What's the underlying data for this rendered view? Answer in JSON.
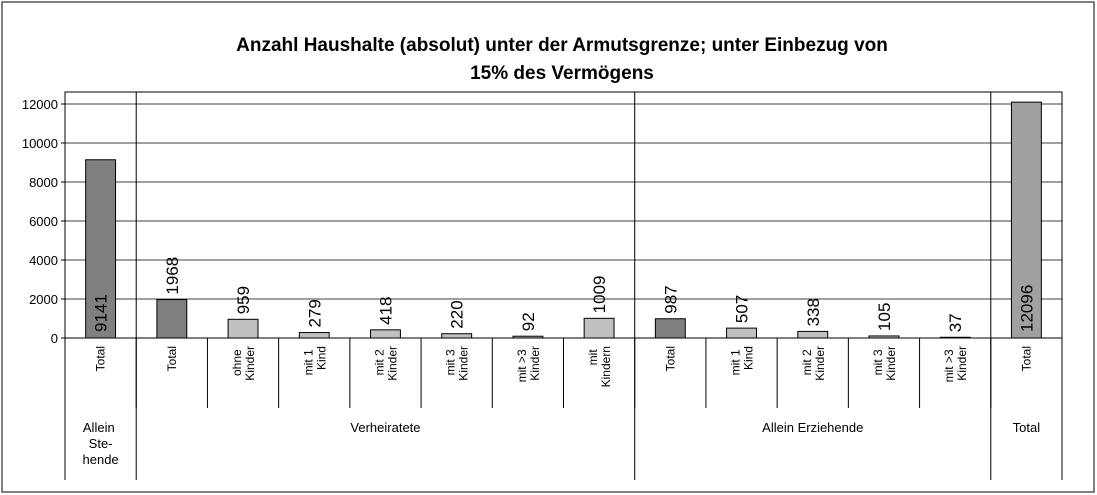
{
  "chart_data": {
    "type": "bar",
    "title": [
      "Anzahl Haushalte (absolut) unter der Armutsgrenze; unter Einbezug von",
      "15% des Vermögens"
    ],
    "groups": [
      {
        "name": "Allein Ste-hende",
        "categories": [
          "Total"
        ],
        "values": [
          9141
        ],
        "colors": [
          "#808080"
        ]
      },
      {
        "name": "Verheiratete",
        "categories": [
          "Total",
          "ohne Kinder",
          "mit 1 Kind",
          "mit 2 Kinder",
          "mit 3 Kinder",
          "mit >3 Kinder",
          "mit Kindern"
        ],
        "values": [
          1968,
          959,
          279,
          418,
          220,
          92,
          1009
        ],
        "colors": [
          "#808080",
          "#c0c0c0",
          "#c0c0c0",
          "#c0c0c0",
          "#c0c0c0",
          "#c0c0c0",
          "#c0c0c0"
        ]
      },
      {
        "name": "Allein Erziehende",
        "categories": [
          "Total",
          "mit 1 Kind",
          "mit 2 Kinder",
          "mit 3 Kinder",
          "mit >3 Kinder"
        ],
        "values": [
          987,
          507,
          338,
          105,
          37
        ],
        "colors": [
          "#808080",
          "#c0c0c0",
          "#c0c0c0",
          "#c0c0c0",
          "#c0c0c0"
        ]
      },
      {
        "name": "Total",
        "categories": [
          "Total"
        ],
        "values": [
          12096
        ],
        "colors": [
          "#a0a0a0"
        ]
      }
    ],
    "ylim": [
      0,
      12000
    ],
    "yticks": [
      0,
      2000,
      4000,
      6000,
      8000,
      10000,
      12000
    ],
    "grid": true
  }
}
